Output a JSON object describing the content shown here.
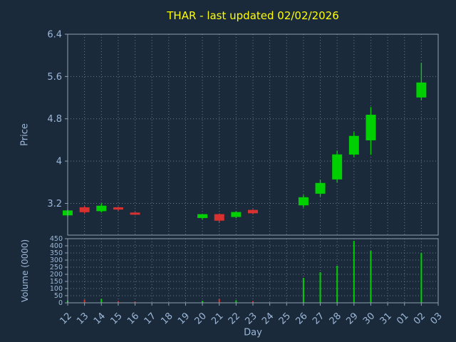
{
  "title": "THAR - last updated 02/02/2026",
  "axes": {
    "price_label": "Price",
    "volume_label": "Volume (0000)",
    "x_label": "Day"
  },
  "colors": {
    "background": "#1a2a3a",
    "title": "#ffff00",
    "axis_text": "#9db8d8",
    "grid": "#7e8fa3",
    "border": "#8fa0b2",
    "up": "#00cf00",
    "down": "#d93030"
  },
  "chart_data": {
    "type": "candlestick",
    "title": "THAR - last updated 02/02/2026",
    "xlabel": "Day",
    "ylabel_price": "Price",
    "ylabel_volume": "Volume (0000)",
    "grid": true,
    "price_ylim": [
      2.6,
      6.4
    ],
    "price_ticks": [
      3.2,
      4,
      4.8,
      5.6,
      6.4
    ],
    "volume_ylim": [
      0,
      450
    ],
    "volume_ticks": [
      0,
      50,
      100,
      150,
      200,
      250,
      300,
      350,
      400,
      450
    ],
    "categories": [
      "12",
      "13",
      "14",
      "15",
      "16",
      "17",
      "18",
      "19",
      "20",
      "21",
      "22",
      "23",
      "24",
      "25",
      "26",
      "27",
      "28",
      "29",
      "30",
      "31",
      "01",
      "02",
      "03"
    ],
    "candles": [
      {
        "day": "12",
        "open": 2.98,
        "high": 3.08,
        "low": 2.95,
        "close": 3.06,
        "volume": 15
      },
      {
        "day": "13",
        "open": 3.12,
        "high": 3.15,
        "low": 3.01,
        "close": 3.04,
        "volume": 22
      },
      {
        "day": "14",
        "open": 3.06,
        "high": 3.2,
        "low": 3.03,
        "close": 3.15,
        "volume": 28
      },
      {
        "day": "15",
        "open": 3.12,
        "high": 3.14,
        "low": 3.06,
        "close": 3.09,
        "volume": 12
      },
      {
        "day": "16",
        "open": 3.02,
        "high": 3.04,
        "low": 2.98,
        "close": 3.0,
        "volume": 8
      },
      {
        "day": "20",
        "open": 2.93,
        "high": 3.0,
        "low": 2.9,
        "close": 2.99,
        "volume": 14
      },
      {
        "day": "21",
        "open": 2.99,
        "high": 3.01,
        "low": 2.84,
        "close": 2.88,
        "volume": 26
      },
      {
        "day": "22",
        "open": 2.95,
        "high": 3.05,
        "low": 2.92,
        "close": 3.03,
        "volume": 18
      },
      {
        "day": "23",
        "open": 3.07,
        "high": 3.09,
        "low": 3.0,
        "close": 3.02,
        "volume": 12
      },
      {
        "day": "26",
        "open": 3.17,
        "high": 3.36,
        "low": 3.12,
        "close": 3.31,
        "volume": 175
      },
      {
        "day": "27",
        "open": 3.39,
        "high": 3.65,
        "low": 3.33,
        "close": 3.58,
        "volume": 215
      },
      {
        "day": "28",
        "open": 3.66,
        "high": 4.2,
        "low": 3.6,
        "close": 4.12,
        "volume": 260
      },
      {
        "day": "29",
        "open": 4.13,
        "high": 4.55,
        "low": 4.08,
        "close": 4.47,
        "volume": 435
      },
      {
        "day": "30",
        "open": 4.4,
        "high": 5.02,
        "low": 4.12,
        "close": 4.87,
        "volume": 365
      },
      {
        "day": "02",
        "open": 5.21,
        "high": 5.86,
        "low": 5.15,
        "close": 5.48,
        "volume": 350
      }
    ]
  }
}
